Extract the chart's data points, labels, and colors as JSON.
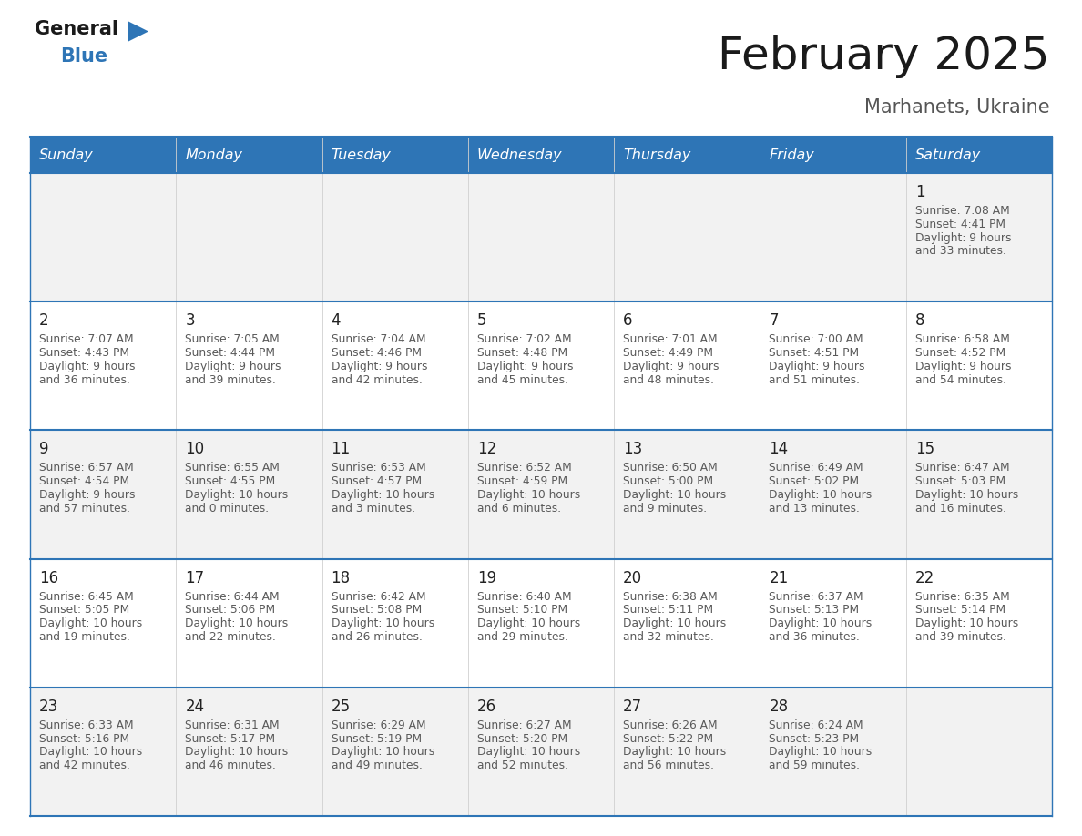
{
  "title": "February 2025",
  "subtitle": "Marhanets, Ukraine",
  "days_of_week": [
    "Sunday",
    "Monday",
    "Tuesday",
    "Wednesday",
    "Thursday",
    "Friday",
    "Saturday"
  ],
  "header_bg": "#2e75b6",
  "header_text_color": "#ffffff",
  "row_bg_alt": "#f2f2f2",
  "row_bg_white": "#ffffff",
  "cell_text_color": "#595959",
  "day_num_color": "#222222",
  "separator_color": "#2e75b6",
  "border_color": "#2e75b6",
  "logo_general_color": "#1a1a1a",
  "logo_blue_color": "#2e75b6",
  "logo_triangle_color": "#2e75b6",
  "calendar_data": [
    [
      null,
      null,
      null,
      null,
      null,
      null,
      {
        "day": "1",
        "sunrise": "7:08 AM",
        "sunset": "4:41 PM",
        "daylight_line1": "Daylight: 9 hours",
        "daylight_line2": "and 33 minutes."
      }
    ],
    [
      {
        "day": "2",
        "sunrise": "7:07 AM",
        "sunset": "4:43 PM",
        "daylight_line1": "Daylight: 9 hours",
        "daylight_line2": "and 36 minutes."
      },
      {
        "day": "3",
        "sunrise": "7:05 AM",
        "sunset": "4:44 PM",
        "daylight_line1": "Daylight: 9 hours",
        "daylight_line2": "and 39 minutes."
      },
      {
        "day": "4",
        "sunrise": "7:04 AM",
        "sunset": "4:46 PM",
        "daylight_line1": "Daylight: 9 hours",
        "daylight_line2": "and 42 minutes."
      },
      {
        "day": "5",
        "sunrise": "7:02 AM",
        "sunset": "4:48 PM",
        "daylight_line1": "Daylight: 9 hours",
        "daylight_line2": "and 45 minutes."
      },
      {
        "day": "6",
        "sunrise": "7:01 AM",
        "sunset": "4:49 PM",
        "daylight_line1": "Daylight: 9 hours",
        "daylight_line2": "and 48 minutes."
      },
      {
        "day": "7",
        "sunrise": "7:00 AM",
        "sunset": "4:51 PM",
        "daylight_line1": "Daylight: 9 hours",
        "daylight_line2": "and 51 minutes."
      },
      {
        "day": "8",
        "sunrise": "6:58 AM",
        "sunset": "4:52 PM",
        "daylight_line1": "Daylight: 9 hours",
        "daylight_line2": "and 54 minutes."
      }
    ],
    [
      {
        "day": "9",
        "sunrise": "6:57 AM",
        "sunset": "4:54 PM",
        "daylight_line1": "Daylight: 9 hours",
        "daylight_line2": "and 57 minutes."
      },
      {
        "day": "10",
        "sunrise": "6:55 AM",
        "sunset": "4:55 PM",
        "daylight_line1": "Daylight: 10 hours",
        "daylight_line2": "and 0 minutes."
      },
      {
        "day": "11",
        "sunrise": "6:53 AM",
        "sunset": "4:57 PM",
        "daylight_line1": "Daylight: 10 hours",
        "daylight_line2": "and 3 minutes."
      },
      {
        "day": "12",
        "sunrise": "6:52 AM",
        "sunset": "4:59 PM",
        "daylight_line1": "Daylight: 10 hours",
        "daylight_line2": "and 6 minutes."
      },
      {
        "day": "13",
        "sunrise": "6:50 AM",
        "sunset": "5:00 PM",
        "daylight_line1": "Daylight: 10 hours",
        "daylight_line2": "and 9 minutes."
      },
      {
        "day": "14",
        "sunrise": "6:49 AM",
        "sunset": "5:02 PM",
        "daylight_line1": "Daylight: 10 hours",
        "daylight_line2": "and 13 minutes."
      },
      {
        "day": "15",
        "sunrise": "6:47 AM",
        "sunset": "5:03 PM",
        "daylight_line1": "Daylight: 10 hours",
        "daylight_line2": "and 16 minutes."
      }
    ],
    [
      {
        "day": "16",
        "sunrise": "6:45 AM",
        "sunset": "5:05 PM",
        "daylight_line1": "Daylight: 10 hours",
        "daylight_line2": "and 19 minutes."
      },
      {
        "day": "17",
        "sunrise": "6:44 AM",
        "sunset": "5:06 PM",
        "daylight_line1": "Daylight: 10 hours",
        "daylight_line2": "and 22 minutes."
      },
      {
        "day": "18",
        "sunrise": "6:42 AM",
        "sunset": "5:08 PM",
        "daylight_line1": "Daylight: 10 hours",
        "daylight_line2": "and 26 minutes."
      },
      {
        "day": "19",
        "sunrise": "6:40 AM",
        "sunset": "5:10 PM",
        "daylight_line1": "Daylight: 10 hours",
        "daylight_line2": "and 29 minutes."
      },
      {
        "day": "20",
        "sunrise": "6:38 AM",
        "sunset": "5:11 PM",
        "daylight_line1": "Daylight: 10 hours",
        "daylight_line2": "and 32 minutes."
      },
      {
        "day": "21",
        "sunrise": "6:37 AM",
        "sunset": "5:13 PM",
        "daylight_line1": "Daylight: 10 hours",
        "daylight_line2": "and 36 minutes."
      },
      {
        "day": "22",
        "sunrise": "6:35 AM",
        "sunset": "5:14 PM",
        "daylight_line1": "Daylight: 10 hours",
        "daylight_line2": "and 39 minutes."
      }
    ],
    [
      {
        "day": "23",
        "sunrise": "6:33 AM",
        "sunset": "5:16 PM",
        "daylight_line1": "Daylight: 10 hours",
        "daylight_line2": "and 42 minutes."
      },
      {
        "day": "24",
        "sunrise": "6:31 AM",
        "sunset": "5:17 PM",
        "daylight_line1": "Daylight: 10 hours",
        "daylight_line2": "and 46 minutes."
      },
      {
        "day": "25",
        "sunrise": "6:29 AM",
        "sunset": "5:19 PM",
        "daylight_line1": "Daylight: 10 hours",
        "daylight_line2": "and 49 minutes."
      },
      {
        "day": "26",
        "sunrise": "6:27 AM",
        "sunset": "5:20 PM",
        "daylight_line1": "Daylight: 10 hours",
        "daylight_line2": "and 52 minutes."
      },
      {
        "day": "27",
        "sunrise": "6:26 AM",
        "sunset": "5:22 PM",
        "daylight_line1": "Daylight: 10 hours",
        "daylight_line2": "and 56 minutes."
      },
      {
        "day": "28",
        "sunrise": "6:24 AM",
        "sunset": "5:23 PM",
        "daylight_line1": "Daylight: 10 hours",
        "daylight_line2": "and 59 minutes."
      },
      null
    ]
  ]
}
